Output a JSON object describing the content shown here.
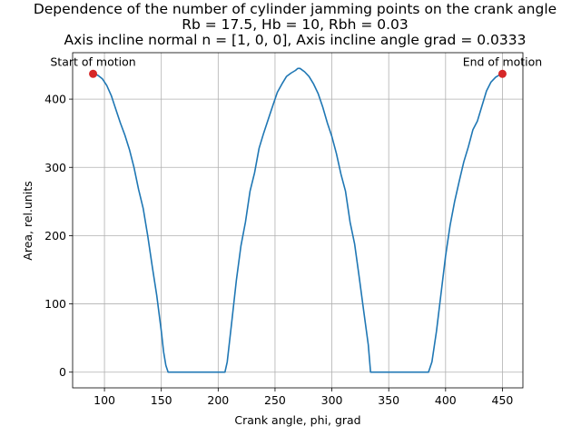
{
  "chart_data": {
    "type": "line",
    "title_lines": [
      "Dependence of the number of cylinder jamming points on the crank angle",
      "Rb = 17.5, Hb = 10, Rbh = 0.03",
      "Axis incline normal n = [1, 0, 0], Axis incline angle grad = 0.0333"
    ],
    "xlabel": "Crank angle, phi, grad",
    "ylabel": "Area, rel.units",
    "xlim": [
      72,
      468
    ],
    "ylim": [
      -23,
      468
    ],
    "xticks": [
      100,
      150,
      200,
      250,
      300,
      350,
      400,
      450
    ],
    "yticks": [
      0,
      100,
      200,
      300,
      400
    ],
    "grid": true,
    "line_color": "#1f77b4",
    "marker_color": "#d62728",
    "series": [
      {
        "x": [
          90,
          94,
          98,
          102,
          106,
          110,
          114,
          118,
          122,
          126,
          130,
          134,
          138,
          142,
          146,
          150,
          152,
          154,
          156,
          160,
          170,
          180,
          190,
          200,
          206,
          208,
          212,
          216,
          220,
          224,
          228,
          232,
          236,
          240,
          244,
          248,
          252,
          256,
          260,
          264,
          268,
          270,
          272,
          276,
          280,
          284,
          288,
          292,
          296,
          300,
          304,
          308,
          312,
          316,
          320,
          324,
          328,
          332,
          334,
          340,
          350,
          360,
          370,
          380,
          385,
          388,
          392,
          396,
          400,
          404,
          408,
          412,
          416,
          420,
          424,
          428,
          432,
          436,
          440,
          444,
          448,
          450
        ],
        "y": [
          437,
          435,
          430,
          420,
          405,
          385,
          365,
          347,
          326,
          300,
          268,
          240,
          200,
          155,
          112,
          60,
          30,
          10,
          0,
          0,
          0,
          0,
          0,
          0,
          0,
          15,
          75,
          135,
          185,
          220,
          265,
          292,
          328,
          350,
          370,
          390,
          410,
          422,
          433,
          438,
          442,
          445,
          445,
          440,
          433,
          422,
          408,
          388,
          365,
          345,
          320,
          290,
          265,
          220,
          188,
          140,
          90,
          40,
          0,
          0,
          0,
          0,
          0,
          0,
          0,
          15,
          60,
          115,
          170,
          215,
          250,
          280,
          308,
          330,
          355,
          368,
          390,
          412,
          425,
          432,
          436,
          437
        ]
      }
    ],
    "annotations": [
      {
        "text": "Start of motion",
        "x": 90,
        "y": 437
      },
      {
        "text": "End of motion",
        "x": 450,
        "y": 437
      }
    ]
  }
}
